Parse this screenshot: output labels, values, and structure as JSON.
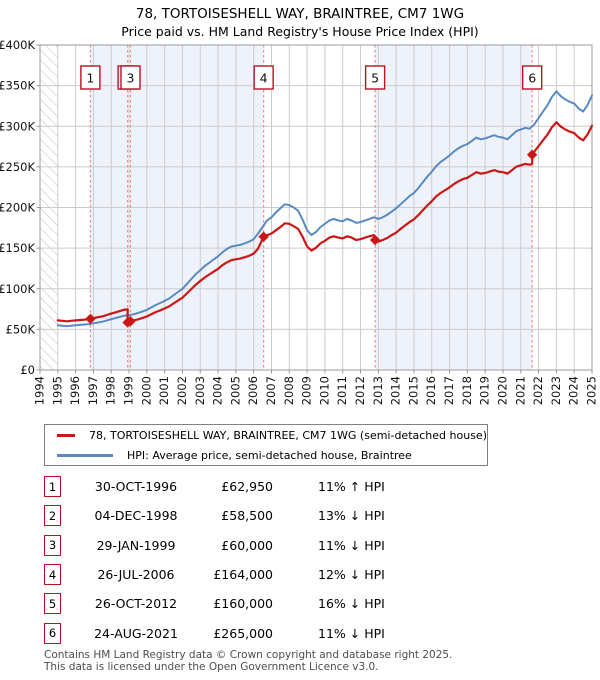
{
  "title": {
    "line1": "78, TORTOISESHELL WAY, BRAINTREE, CM7 1WG",
    "line2": "Price paid vs. HM Land Registry's House Price Index (HPI)"
  },
  "colors": {
    "property_red": "#cc1616",
    "hpi_blue": "#5a8ac2",
    "dashed_marker": "#f48a8a",
    "shade_band": "#edf2fb",
    "grid": "#cccccc",
    "axis_border": "#999999",
    "hatch": "#b9bfc9",
    "marker_box_border": "#bb1122",
    "text": "#111111"
  },
  "chart_data": {
    "type": "line",
    "x_axis": {
      "start": 1994,
      "end": 2025,
      "tick_labels": [
        "1994",
        "1995",
        "1996",
        "1997",
        "1998",
        "1999",
        "2000",
        "2001",
        "2002",
        "2003",
        "2004",
        "2005",
        "2006",
        "2007",
        "2008",
        "2009",
        "2010",
        "2011",
        "2012",
        "2013",
        "2014",
        "2015",
        "2016",
        "2017",
        "2018",
        "2019",
        "2020",
        "2021",
        "2022",
        "2023",
        "2024",
        "2025"
      ]
    },
    "y_axis": {
      "min": 0,
      "max": 400000,
      "step": 50000,
      "tick_labels": [
        "£0",
        "£50K",
        "£100K",
        "£150K",
        "£200K",
        "£250K",
        "£300K",
        "£350K",
        "£400K"
      ]
    },
    "grid": true,
    "hatch_until": 1995.0,
    "shaded_bands": [
      [
        1996.83,
        1998.92
      ],
      [
        1999.08,
        2006.56
      ],
      [
        2012.82,
        2021.64
      ]
    ],
    "purchases": [
      {
        "n": "1",
        "x": 1996.83,
        "price_k": 62.95
      },
      {
        "n": "2",
        "x": 1998.92,
        "price_k": 58.5
      },
      {
        "n": "3",
        "x": 1999.08,
        "price_k": 60
      },
      {
        "n": "4",
        "x": 2006.56,
        "price_k": 164
      },
      {
        "n": "5",
        "x": 2012.82,
        "price_k": 160
      },
      {
        "n": "6",
        "x": 2021.64,
        "price_k": 265
      }
    ],
    "series": [
      {
        "name": "hpi-average-price",
        "color_key": "hpi_blue",
        "width": 2,
        "points": [
          [
            1995.0,
            55
          ],
          [
            1995.25,
            54.5
          ],
          [
            1995.5,
            54
          ],
          [
            1995.75,
            54.5
          ],
          [
            1996.0,
            55
          ],
          [
            1996.25,
            55.5
          ],
          [
            1996.5,
            56
          ],
          [
            1996.75,
            56.5
          ],
          [
            1997.0,
            57.5
          ],
          [
            1997.25,
            58.5
          ],
          [
            1997.5,
            59.5
          ],
          [
            1997.75,
            61
          ],
          [
            1998.0,
            62.5
          ],
          [
            1998.25,
            64
          ],
          [
            1998.5,
            65.5
          ],
          [
            1998.75,
            67
          ],
          [
            1999.0,
            67.5
          ],
          [
            1999.25,
            68.5
          ],
          [
            1999.5,
            70
          ],
          [
            1999.75,
            72
          ],
          [
            2000.0,
            74
          ],
          [
            2000.25,
            77
          ],
          [
            2000.5,
            80
          ],
          [
            2000.75,
            82.5
          ],
          [
            2001.0,
            85
          ],
          [
            2001.25,
            88
          ],
          [
            2001.5,
            92
          ],
          [
            2001.75,
            96
          ],
          [
            2002.0,
            100
          ],
          [
            2002.25,
            106
          ],
          [
            2002.5,
            112
          ],
          [
            2002.75,
            118
          ],
          [
            2003.0,
            123
          ],
          [
            2003.25,
            128
          ],
          [
            2003.5,
            132
          ],
          [
            2003.75,
            136
          ],
          [
            2004.0,
            140
          ],
          [
            2004.25,
            145
          ],
          [
            2004.5,
            149
          ],
          [
            2004.75,
            152
          ],
          [
            2005.0,
            153
          ],
          [
            2005.25,
            154
          ],
          [
            2005.5,
            156
          ],
          [
            2005.75,
            158
          ],
          [
            2006.0,
            161
          ],
          [
            2006.25,
            168
          ],
          [
            2006.5,
            176
          ],
          [
            2006.75,
            184
          ],
          [
            2007.0,
            188
          ],
          [
            2007.25,
            194
          ],
          [
            2007.5,
            199
          ],
          [
            2007.75,
            204
          ],
          [
            2008.0,
            203
          ],
          [
            2008.25,
            200
          ],
          [
            2008.5,
            196
          ],
          [
            2008.75,
            185
          ],
          [
            2009.0,
            172
          ],
          [
            2009.25,
            166
          ],
          [
            2009.5,
            170
          ],
          [
            2009.75,
            176
          ],
          [
            2010.0,
            180
          ],
          [
            2010.25,
            184
          ],
          [
            2010.5,
            186
          ],
          [
            2010.75,
            184
          ],
          [
            2011.0,
            183
          ],
          [
            2011.25,
            186
          ],
          [
            2011.5,
            184
          ],
          [
            2011.75,
            181
          ],
          [
            2012.0,
            182
          ],
          [
            2012.25,
            184
          ],
          [
            2012.5,
            186
          ],
          [
            2012.75,
            188
          ],
          [
            2013.0,
            186
          ],
          [
            2013.25,
            188
          ],
          [
            2013.5,
            191
          ],
          [
            2013.75,
            195
          ],
          [
            2014.0,
            199
          ],
          [
            2014.25,
            204
          ],
          [
            2014.5,
            209
          ],
          [
            2014.75,
            214
          ],
          [
            2015.0,
            218
          ],
          [
            2015.25,
            224
          ],
          [
            2015.5,
            231
          ],
          [
            2015.75,
            238
          ],
          [
            2016.0,
            244
          ],
          [
            2016.25,
            251
          ],
          [
            2016.5,
            256
          ],
          [
            2016.75,
            260
          ],
          [
            2017.0,
            264
          ],
          [
            2017.25,
            269
          ],
          [
            2017.5,
            273
          ],
          [
            2017.75,
            276
          ],
          [
            2018.0,
            278
          ],
          [
            2018.25,
            282
          ],
          [
            2018.5,
            286
          ],
          [
            2018.75,
            284
          ],
          [
            2019.0,
            285
          ],
          [
            2019.25,
            287
          ],
          [
            2019.5,
            289
          ],
          [
            2019.75,
            287
          ],
          [
            2020.0,
            286
          ],
          [
            2020.25,
            284
          ],
          [
            2020.5,
            289
          ],
          [
            2020.75,
            294
          ],
          [
            2021.0,
            296
          ],
          [
            2021.25,
            298
          ],
          [
            2021.5,
            297
          ],
          [
            2021.75,
            302
          ],
          [
            2022.0,
            310
          ],
          [
            2022.25,
            318
          ],
          [
            2022.5,
            326
          ],
          [
            2022.75,
            336
          ],
          [
            2023.0,
            343
          ],
          [
            2023.25,
            337
          ],
          [
            2023.5,
            333
          ],
          [
            2023.75,
            330
          ],
          [
            2024.0,
            328
          ],
          [
            2024.25,
            322
          ],
          [
            2024.5,
            318
          ],
          [
            2024.75,
            326
          ],
          [
            2025.0,
            338
          ]
        ]
      },
      {
        "name": "price-paid",
        "color_key": "property_red",
        "width": 2.2,
        "points": [
          [
            1995.0,
            61
          ],
          [
            1995.25,
            60.5
          ],
          [
            1995.5,
            60
          ],
          [
            1995.75,
            60.5
          ],
          [
            1996.0,
            61
          ],
          [
            1996.25,
            61.5
          ],
          [
            1996.5,
            62
          ],
          [
            1996.83,
            62.95
          ],
          [
            1997.0,
            63.8
          ],
          [
            1997.25,
            65
          ],
          [
            1997.5,
            66
          ],
          [
            1997.75,
            67.7
          ],
          [
            1998.0,
            69.4
          ],
          [
            1998.25,
            71
          ],
          [
            1998.5,
            72.7
          ],
          [
            1998.75,
            74.4
          ],
          [
            1998.92,
            74.6
          ],
          [
            1998.92,
            58.5
          ],
          [
            1999.08,
            60
          ],
          [
            1999.25,
            61
          ],
          [
            1999.5,
            62.3
          ],
          [
            1999.75,
            64.1
          ],
          [
            2000.0,
            65.9
          ],
          [
            2000.25,
            68.5
          ],
          [
            2000.5,
            71.2
          ],
          [
            2000.75,
            73.4
          ],
          [
            2001.0,
            75.7
          ],
          [
            2001.25,
            78.3
          ],
          [
            2001.5,
            81.9
          ],
          [
            2001.75,
            85.4
          ],
          [
            2002.0,
            89
          ],
          [
            2002.25,
            94.3
          ],
          [
            2002.5,
            99.7
          ],
          [
            2002.75,
            105
          ],
          [
            2003.0,
            109.5
          ],
          [
            2003.25,
            113.9
          ],
          [
            2003.5,
            117.5
          ],
          [
            2003.75,
            121
          ],
          [
            2004.0,
            124.6
          ],
          [
            2004.25,
            129.1
          ],
          [
            2004.5,
            132.6
          ],
          [
            2004.75,
            135.3
          ],
          [
            2005.0,
            136.2
          ],
          [
            2005.25,
            137.1
          ],
          [
            2005.5,
            138.8
          ],
          [
            2005.75,
            140.6
          ],
          [
            2006.0,
            143.3
          ],
          [
            2006.25,
            149.5
          ],
          [
            2006.56,
            164
          ],
          [
            2006.75,
            166
          ],
          [
            2007.0,
            168
          ],
          [
            2007.25,
            172
          ],
          [
            2007.5,
            176
          ],
          [
            2007.75,
            180.5
          ],
          [
            2008.0,
            180
          ],
          [
            2008.25,
            177
          ],
          [
            2008.5,
            173.5
          ],
          [
            2008.75,
            164
          ],
          [
            2009.0,
            152
          ],
          [
            2009.25,
            147
          ],
          [
            2009.5,
            150.5
          ],
          [
            2009.75,
            156
          ],
          [
            2010.0,
            159
          ],
          [
            2010.25,
            163
          ],
          [
            2010.5,
            164.6
          ],
          [
            2010.75,
            163
          ],
          [
            2011.0,
            162
          ],
          [
            2011.25,
            164.6
          ],
          [
            2011.5,
            163
          ],
          [
            2011.75,
            160
          ],
          [
            2012.0,
            161
          ],
          [
            2012.25,
            163
          ],
          [
            2012.5,
            164.6
          ],
          [
            2012.75,
            166
          ],
          [
            2012.82,
            160
          ],
          [
            2013.0,
            158
          ],
          [
            2013.25,
            160
          ],
          [
            2013.5,
            162.5
          ],
          [
            2013.75,
            166
          ],
          [
            2014.0,
            169
          ],
          [
            2014.25,
            173.6
          ],
          [
            2014.5,
            177.9
          ],
          [
            2014.75,
            182
          ],
          [
            2015.0,
            185.5
          ],
          [
            2015.25,
            190.6
          ],
          [
            2015.5,
            196.6
          ],
          [
            2015.75,
            202.5
          ],
          [
            2016.0,
            207.6
          ],
          [
            2016.25,
            213.6
          ],
          [
            2016.5,
            217.9
          ],
          [
            2016.75,
            221.3
          ],
          [
            2017.0,
            224.7
          ],
          [
            2017.25,
            228.9
          ],
          [
            2017.5,
            232.3
          ],
          [
            2017.75,
            234.9
          ],
          [
            2018.0,
            236.6
          ],
          [
            2018.25,
            240
          ],
          [
            2018.5,
            243.4
          ],
          [
            2018.75,
            241.7
          ],
          [
            2019.0,
            242.5
          ],
          [
            2019.25,
            244.2
          ],
          [
            2019.5,
            245.9
          ],
          [
            2019.75,
            244.2
          ],
          [
            2020.0,
            243.4
          ],
          [
            2020.25,
            241.7
          ],
          [
            2020.5,
            245.9
          ],
          [
            2020.75,
            250.2
          ],
          [
            2021.0,
            251.9
          ],
          [
            2021.25,
            253.6
          ],
          [
            2021.5,
            252.7
          ],
          [
            2021.64,
            254
          ],
          [
            2021.64,
            265
          ],
          [
            2021.75,
            268.5
          ],
          [
            2022.0,
            275.6
          ],
          [
            2022.25,
            282.7
          ],
          [
            2022.5,
            289.8
          ],
          [
            2022.75,
            298.7
          ],
          [
            2023.0,
            305
          ],
          [
            2023.25,
            299.6
          ],
          [
            2023.5,
            296
          ],
          [
            2023.75,
            293.4
          ],
          [
            2024.0,
            291.6
          ],
          [
            2024.25,
            286.3
          ],
          [
            2024.5,
            282.7
          ],
          [
            2024.75,
            289.8
          ],
          [
            2025.0,
            300.5
          ]
        ]
      }
    ]
  },
  "legend": {
    "items": [
      {
        "label": "78, TORTOISESHELL WAY, BRAINTREE, CM7 1WG (semi-detached house)",
        "color_key": "property_red"
      },
      {
        "label": "HPI: Average price, semi-detached house, Braintree",
        "color_key": "hpi_blue"
      }
    ]
  },
  "table": {
    "rows": [
      {
        "num": "1",
        "date": "30-OCT-1996",
        "price": "£62,950",
        "hpi": "11% ↑ HPI"
      },
      {
        "num": "2",
        "date": "04-DEC-1998",
        "price": "£58,500",
        "hpi": "13% ↓ HPI"
      },
      {
        "num": "3",
        "date": "29-JAN-1999",
        "price": "£60,000",
        "hpi": "11% ↓ HPI"
      },
      {
        "num": "4",
        "date": "26-JUL-2006",
        "price": "£164,000",
        "hpi": "12% ↓ HPI"
      },
      {
        "num": "5",
        "date": "26-OCT-2012",
        "price": "£160,000",
        "hpi": "16% ↓ HPI"
      },
      {
        "num": "6",
        "date": "24-AUG-2021",
        "price": "£265,000",
        "hpi": "11% ↓ HPI"
      }
    ]
  },
  "footer": {
    "line1": "Contains HM Land Registry data © Crown copyright and database right 2025.",
    "line2": "This data is licensed under the Open Government Licence v3.0."
  }
}
